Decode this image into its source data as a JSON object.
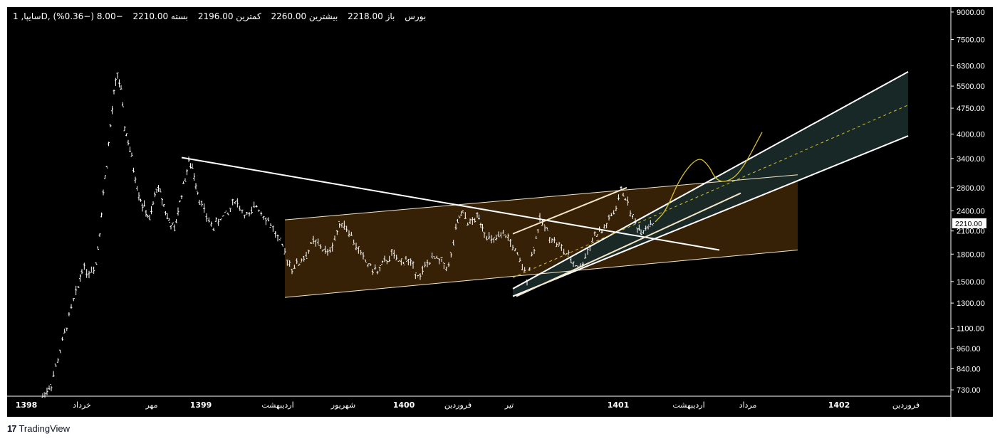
{
  "header": {
    "symbol": "سایپا, 1D, بورس",
    "open": "باز 2218.00",
    "high": "بیشترین 2260.00",
    "low": "کمترین 2196.00",
    "close": "بسته 2210.00",
    "change": "−8.00 (−0.36%)"
  },
  "price_badge": "2210.00",
  "footer": {
    "logo": "17",
    "brand": "TradingView"
  },
  "colors": {
    "background": "#000000",
    "candles": "#ffffff",
    "channel_fill_orange": "#3a2306",
    "channel_fill_teal": "#182a28",
    "lines": "#ffffff",
    "projection": "#d7c02a"
  },
  "chart_data": {
    "type": "ohlc",
    "y_scale": "log",
    "ylim": [
      700,
      9300
    ],
    "y_ticks": [
      "9000.00",
      "7500.00",
      "6300.00",
      "5500.00",
      "4750.00",
      "4000.00",
      "3400.00",
      "2800.00",
      "2400.00",
      "2100.00",
      "1800.00",
      "1500.00",
      "1300.00",
      "1100.00",
      "960.00",
      "840.00",
      "730.00"
    ],
    "y_tick_values": [
      9000,
      7500,
      6300,
      5500,
      4750,
      4000,
      3400,
      2800,
      2400,
      2100,
      1800,
      1500,
      1300,
      1100,
      960,
      840,
      730
    ],
    "x_labels": [
      "1398",
      "خرداد",
      "مهر",
      "1399",
      "اردیبهشت",
      "شهریور",
      "1400",
      "فروردین",
      "تیر",
      "1401",
      "اردیبهشت",
      "مرداد",
      "1402",
      "فروردین"
    ],
    "x_label_bold": [
      "1398",
      "1399",
      "1400",
      "1401",
      "1402"
    ],
    "price_path": [
      [
        50,
        700
      ],
      [
        62,
        760
      ],
      [
        90,
        1250
      ],
      [
        100,
        1450
      ],
      [
        105,
        1650
      ],
      [
        115,
        1600
      ],
      [
        125,
        1700
      ],
      [
        130,
        2100
      ],
      [
        135,
        2700
      ],
      [
        140,
        3300
      ],
      [
        145,
        4200
      ],
      [
        150,
        5200
      ],
      [
        155,
        6000
      ],
      [
        160,
        5300
      ],
      [
        165,
        4200
      ],
      [
        170,
        3800
      ],
      [
        175,
        3400
      ],
      [
        180,
        3000
      ],
      [
        185,
        2700
      ],
      [
        190,
        2500
      ],
      [
        195,
        2400
      ],
      [
        200,
        2250
      ],
      [
        205,
        2500
      ],
      [
        210,
        2800
      ],
      [
        215,
        2700
      ],
      [
        220,
        2500
      ],
      [
        225,
        2300
      ],
      [
        230,
        2200
      ],
      [
        235,
        2100
      ],
      [
        240,
        2400
      ],
      [
        245,
        2700
      ],
      [
        250,
        3000
      ],
      [
        255,
        3300
      ],
      [
        260,
        3200
      ],
      [
        265,
        2900
      ],
      [
        270,
        2600
      ],
      [
        280,
        2300
      ],
      [
        290,
        2150
      ],
      [
        300,
        2300
      ],
      [
        310,
        2350
      ],
      [
        320,
        2600
      ],
      [
        330,
        2400
      ],
      [
        340,
        2300
      ],
      [
        350,
        2500
      ],
      [
        360,
        2350
      ],
      [
        370,
        2200
      ],
      [
        380,
        2000
      ],
      [
        390,
        1800
      ],
      [
        400,
        1650
      ],
      [
        410,
        1700
      ],
      [
        420,
        1800
      ],
      [
        430,
        1950
      ],
      [
        440,
        1900
      ],
      [
        450,
        1800
      ],
      [
        460,
        2000
      ],
      [
        470,
        2250
      ],
      [
        480,
        2100
      ],
      [
        490,
        1900
      ],
      [
        500,
        1750
      ],
      [
        510,
        1650
      ],
      [
        520,
        1600
      ],
      [
        530,
        1700
      ],
      [
        540,
        1800
      ],
      [
        550,
        1700
      ],
      [
        560,
        1750
      ],
      [
        570,
        1650
      ],
      [
        580,
        1550
      ],
      [
        590,
        1700
      ],
      [
        600,
        1750
      ],
      [
        610,
        1700
      ],
      [
        620,
        1650
      ],
      [
        630,
        2100
      ],
      [
        635,
        2300
      ],
      [
        640,
        2350
      ],
      [
        650,
        2200
      ],
      [
        660,
        2300
      ],
      [
        665,
        2250
      ],
      [
        670,
        2100
      ],
      [
        680,
        1950
      ],
      [
        690,
        2000
      ],
      [
        700,
        2050
      ],
      [
        710,
        1900
      ],
      [
        720,
        1700
      ],
      [
        730,
        1550
      ],
      [
        740,
        1900
      ],
      [
        748,
        2250
      ],
      [
        755,
        2150
      ],
      [
        765,
        2000
      ],
      [
        775,
        1900
      ],
      [
        785,
        1800
      ],
      [
        795,
        1700
      ],
      [
        805,
        1650
      ],
      [
        815,
        1850
      ],
      [
        825,
        2050
      ],
      [
        835,
        2100
      ],
      [
        845,
        2250
      ],
      [
        855,
        2450
      ],
      [
        862,
        2750
      ],
      [
        868,
        2650
      ],
      [
        875,
        2400
      ],
      [
        882,
        2200
      ],
      [
        890,
        2100
      ],
      [
        900,
        2200
      ],
      [
        910,
        2210
      ]
    ],
    "channel_orange": {
      "top": [
        [
          390,
          2260
        ],
        [
          1110,
          3050
        ]
      ],
      "bottom": [
        [
          390,
          1350
        ],
        [
          1110,
          1850
        ]
      ]
    },
    "channel_teal": {
      "top": [
        [
          710,
          1430
        ],
        [
          1265,
          6050
        ]
      ],
      "bottom": [
        [
          710,
          1360
        ],
        [
          1265,
          3950
        ]
      ],
      "mid": [
        [
          710,
          1540
        ],
        [
          1265,
          4850
        ]
      ]
    },
    "trendline_down": [
      [
        245,
        3420
      ],
      [
        1000,
        1850
      ]
    ],
    "trendline_inner": [
      [
        715,
        1360
      ],
      [
        1030,
        2700
      ]
    ],
    "inner_channel_top": [
      [
        710,
        2060
      ],
      [
        870,
        2800
      ]
    ],
    "projection_path": [
      [
        910,
        2230
      ],
      [
        925,
        2400
      ],
      [
        945,
        3000
      ],
      [
        970,
        3450
      ],
      [
        985,
        3250
      ],
      [
        995,
        2950
      ],
      [
        1010,
        2900
      ],
      [
        1030,
        3100
      ],
      [
        1060,
        4050
      ]
    ],
    "last_price": 2210
  }
}
